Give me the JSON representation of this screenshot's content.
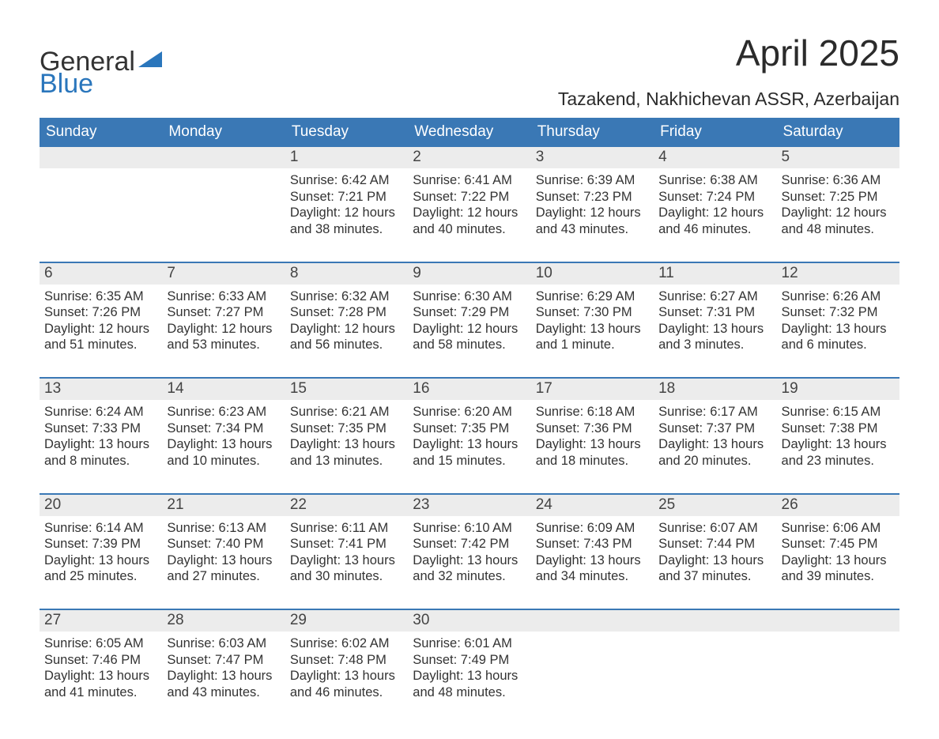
{
  "brand": {
    "line1": "General",
    "line2": "Blue",
    "accent_color": "#2a76bc"
  },
  "title": "April 2025",
  "location": "Tazakend, Nakhichevan ASSR, Azerbaijan",
  "colors": {
    "header_bg": "#3a78b5",
    "header_text": "#ffffff",
    "daynum_bg": "#ececec",
    "week_border": "#3a78b5",
    "body_text": "#333333",
    "page_bg": "#ffffff"
  },
  "days_of_week": [
    "Sunday",
    "Monday",
    "Tuesday",
    "Wednesday",
    "Thursday",
    "Friday",
    "Saturday"
  ],
  "weeks": [
    [
      null,
      null,
      {
        "n": "1",
        "sunrise": "Sunrise: 6:42 AM",
        "sunset": "Sunset: 7:21 PM",
        "d1": "Daylight: 12 hours",
        "d2": "and 38 minutes."
      },
      {
        "n": "2",
        "sunrise": "Sunrise: 6:41 AM",
        "sunset": "Sunset: 7:22 PM",
        "d1": "Daylight: 12 hours",
        "d2": "and 40 minutes."
      },
      {
        "n": "3",
        "sunrise": "Sunrise: 6:39 AM",
        "sunset": "Sunset: 7:23 PM",
        "d1": "Daylight: 12 hours",
        "d2": "and 43 minutes."
      },
      {
        "n": "4",
        "sunrise": "Sunrise: 6:38 AM",
        "sunset": "Sunset: 7:24 PM",
        "d1": "Daylight: 12 hours",
        "d2": "and 46 minutes."
      },
      {
        "n": "5",
        "sunrise": "Sunrise: 6:36 AM",
        "sunset": "Sunset: 7:25 PM",
        "d1": "Daylight: 12 hours",
        "d2": "and 48 minutes."
      }
    ],
    [
      {
        "n": "6",
        "sunrise": "Sunrise: 6:35 AM",
        "sunset": "Sunset: 7:26 PM",
        "d1": "Daylight: 12 hours",
        "d2": "and 51 minutes."
      },
      {
        "n": "7",
        "sunrise": "Sunrise: 6:33 AM",
        "sunset": "Sunset: 7:27 PM",
        "d1": "Daylight: 12 hours",
        "d2": "and 53 minutes."
      },
      {
        "n": "8",
        "sunrise": "Sunrise: 6:32 AM",
        "sunset": "Sunset: 7:28 PM",
        "d1": "Daylight: 12 hours",
        "d2": "and 56 minutes."
      },
      {
        "n": "9",
        "sunrise": "Sunrise: 6:30 AM",
        "sunset": "Sunset: 7:29 PM",
        "d1": "Daylight: 12 hours",
        "d2": "and 58 minutes."
      },
      {
        "n": "10",
        "sunrise": "Sunrise: 6:29 AM",
        "sunset": "Sunset: 7:30 PM",
        "d1": "Daylight: 13 hours",
        "d2": "and 1 minute."
      },
      {
        "n": "11",
        "sunrise": "Sunrise: 6:27 AM",
        "sunset": "Sunset: 7:31 PM",
        "d1": "Daylight: 13 hours",
        "d2": "and 3 minutes."
      },
      {
        "n": "12",
        "sunrise": "Sunrise: 6:26 AM",
        "sunset": "Sunset: 7:32 PM",
        "d1": "Daylight: 13 hours",
        "d2": "and 6 minutes."
      }
    ],
    [
      {
        "n": "13",
        "sunrise": "Sunrise: 6:24 AM",
        "sunset": "Sunset: 7:33 PM",
        "d1": "Daylight: 13 hours",
        "d2": "and 8 minutes."
      },
      {
        "n": "14",
        "sunrise": "Sunrise: 6:23 AM",
        "sunset": "Sunset: 7:34 PM",
        "d1": "Daylight: 13 hours",
        "d2": "and 10 minutes."
      },
      {
        "n": "15",
        "sunrise": "Sunrise: 6:21 AM",
        "sunset": "Sunset: 7:35 PM",
        "d1": "Daylight: 13 hours",
        "d2": "and 13 minutes."
      },
      {
        "n": "16",
        "sunrise": "Sunrise: 6:20 AM",
        "sunset": "Sunset: 7:35 PM",
        "d1": "Daylight: 13 hours",
        "d2": "and 15 minutes."
      },
      {
        "n": "17",
        "sunrise": "Sunrise: 6:18 AM",
        "sunset": "Sunset: 7:36 PM",
        "d1": "Daylight: 13 hours",
        "d2": "and 18 minutes."
      },
      {
        "n": "18",
        "sunrise": "Sunrise: 6:17 AM",
        "sunset": "Sunset: 7:37 PM",
        "d1": "Daylight: 13 hours",
        "d2": "and 20 minutes."
      },
      {
        "n": "19",
        "sunrise": "Sunrise: 6:15 AM",
        "sunset": "Sunset: 7:38 PM",
        "d1": "Daylight: 13 hours",
        "d2": "and 23 minutes."
      }
    ],
    [
      {
        "n": "20",
        "sunrise": "Sunrise: 6:14 AM",
        "sunset": "Sunset: 7:39 PM",
        "d1": "Daylight: 13 hours",
        "d2": "and 25 minutes."
      },
      {
        "n": "21",
        "sunrise": "Sunrise: 6:13 AM",
        "sunset": "Sunset: 7:40 PM",
        "d1": "Daylight: 13 hours",
        "d2": "and 27 minutes."
      },
      {
        "n": "22",
        "sunrise": "Sunrise: 6:11 AM",
        "sunset": "Sunset: 7:41 PM",
        "d1": "Daylight: 13 hours",
        "d2": "and 30 minutes."
      },
      {
        "n": "23",
        "sunrise": "Sunrise: 6:10 AM",
        "sunset": "Sunset: 7:42 PM",
        "d1": "Daylight: 13 hours",
        "d2": "and 32 minutes."
      },
      {
        "n": "24",
        "sunrise": "Sunrise: 6:09 AM",
        "sunset": "Sunset: 7:43 PM",
        "d1": "Daylight: 13 hours",
        "d2": "and 34 minutes."
      },
      {
        "n": "25",
        "sunrise": "Sunrise: 6:07 AM",
        "sunset": "Sunset: 7:44 PM",
        "d1": "Daylight: 13 hours",
        "d2": "and 37 minutes."
      },
      {
        "n": "26",
        "sunrise": "Sunrise: 6:06 AM",
        "sunset": "Sunset: 7:45 PM",
        "d1": "Daylight: 13 hours",
        "d2": "and 39 minutes."
      }
    ],
    [
      {
        "n": "27",
        "sunrise": "Sunrise: 6:05 AM",
        "sunset": "Sunset: 7:46 PM",
        "d1": "Daylight: 13 hours",
        "d2": "and 41 minutes."
      },
      {
        "n": "28",
        "sunrise": "Sunrise: 6:03 AM",
        "sunset": "Sunset: 7:47 PM",
        "d1": "Daylight: 13 hours",
        "d2": "and 43 minutes."
      },
      {
        "n": "29",
        "sunrise": "Sunrise: 6:02 AM",
        "sunset": "Sunset: 7:48 PM",
        "d1": "Daylight: 13 hours",
        "d2": "and 46 minutes."
      },
      {
        "n": "30",
        "sunrise": "Sunrise: 6:01 AM",
        "sunset": "Sunset: 7:49 PM",
        "d1": "Daylight: 13 hours",
        "d2": "and 48 minutes."
      },
      null,
      null,
      null
    ]
  ]
}
